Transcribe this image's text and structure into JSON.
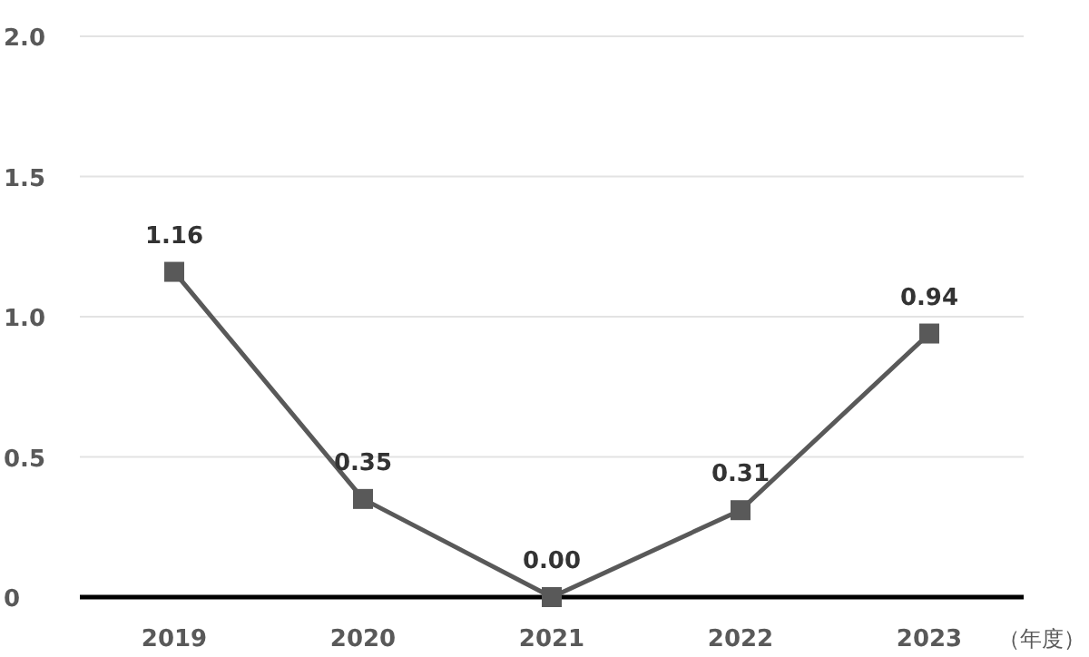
{
  "chart_data": {
    "type": "line",
    "xlabel": "（年度）",
    "categories": [
      "2019",
      "2020",
      "2021",
      "2022",
      "2023"
    ],
    "series": [
      {
        "color": "#595959",
        "values": [
          1.16,
          0.35,
          0.0,
          0.31,
          0.94
        ],
        "value_labels": [
          "1.16",
          "0.35",
          "0.00",
          "0.31",
          "0.94"
        ]
      }
    ],
    "ylim": [
      0,
      2.0
    ],
    "yticks": [
      {
        "value": 0,
        "label": "0"
      },
      {
        "value": 0.5,
        "label": "0.5"
      },
      {
        "value": 1.0,
        "label": "1.0"
      },
      {
        "value": 1.5,
        "label": "1.5"
      },
      {
        "value": 2.0,
        "label": "2.0"
      }
    ],
    "grid": "y",
    "marker": "square",
    "line_style": "solid"
  }
}
